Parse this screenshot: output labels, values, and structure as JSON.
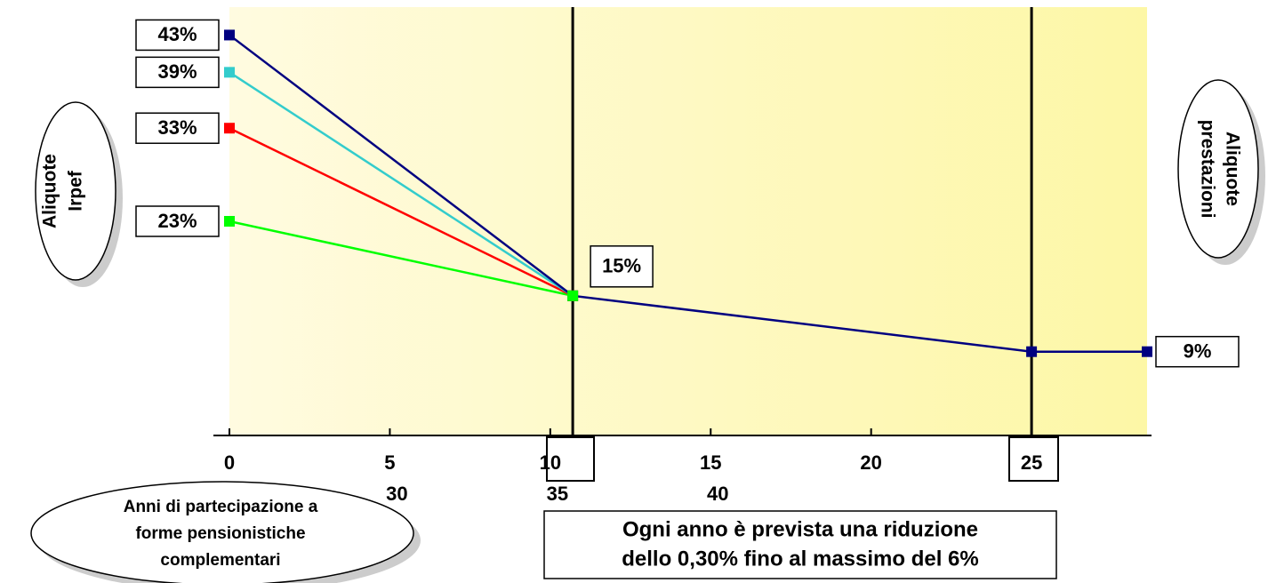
{
  "chart_data": {
    "type": "line",
    "x": [
      0,
      10.7,
      25,
      28.6
    ],
    "xlim": [
      0,
      28.6
    ],
    "xticks": [
      0,
      5,
      10,
      15,
      20,
      25
    ],
    "xticks_second_row": [
      30,
      35,
      40
    ],
    "ylim": [
      0,
      46
    ],
    "vertical_lines": [
      10.7,
      25
    ],
    "series": [
      {
        "color": "#000080",
        "values": [
          43,
          15,
          9,
          9
        ],
        "value_labels": [
          "43%",
          "15%",
          null,
          "9%"
        ]
      },
      {
        "color": "#33cccc",
        "values": [
          39,
          15,
          null,
          null
        ],
        "value_labels": [
          "39%",
          null,
          null,
          null
        ]
      },
      {
        "color": "#ff0000",
        "values": [
          33,
          15,
          null,
          null
        ],
        "value_labels": [
          "33%",
          null,
          null,
          null
        ]
      },
      {
        "color": "#00ff00",
        "values": [
          23,
          15,
          null,
          null
        ],
        "value_labels": [
          "23%",
          null,
          null,
          null
        ]
      }
    ],
    "y_label_left": [
      "Aliquote",
      "Irpef"
    ],
    "y_label_right": [
      "Aliquote",
      "prestazioni"
    ],
    "x_label": [
      "Anni di partecipazione a",
      "forme pensionistiche",
      "complementari"
    ],
    "note": [
      "Ogni anno è prevista una riduzione",
      "dello 0,30% fino al massimo del 6%"
    ]
  }
}
